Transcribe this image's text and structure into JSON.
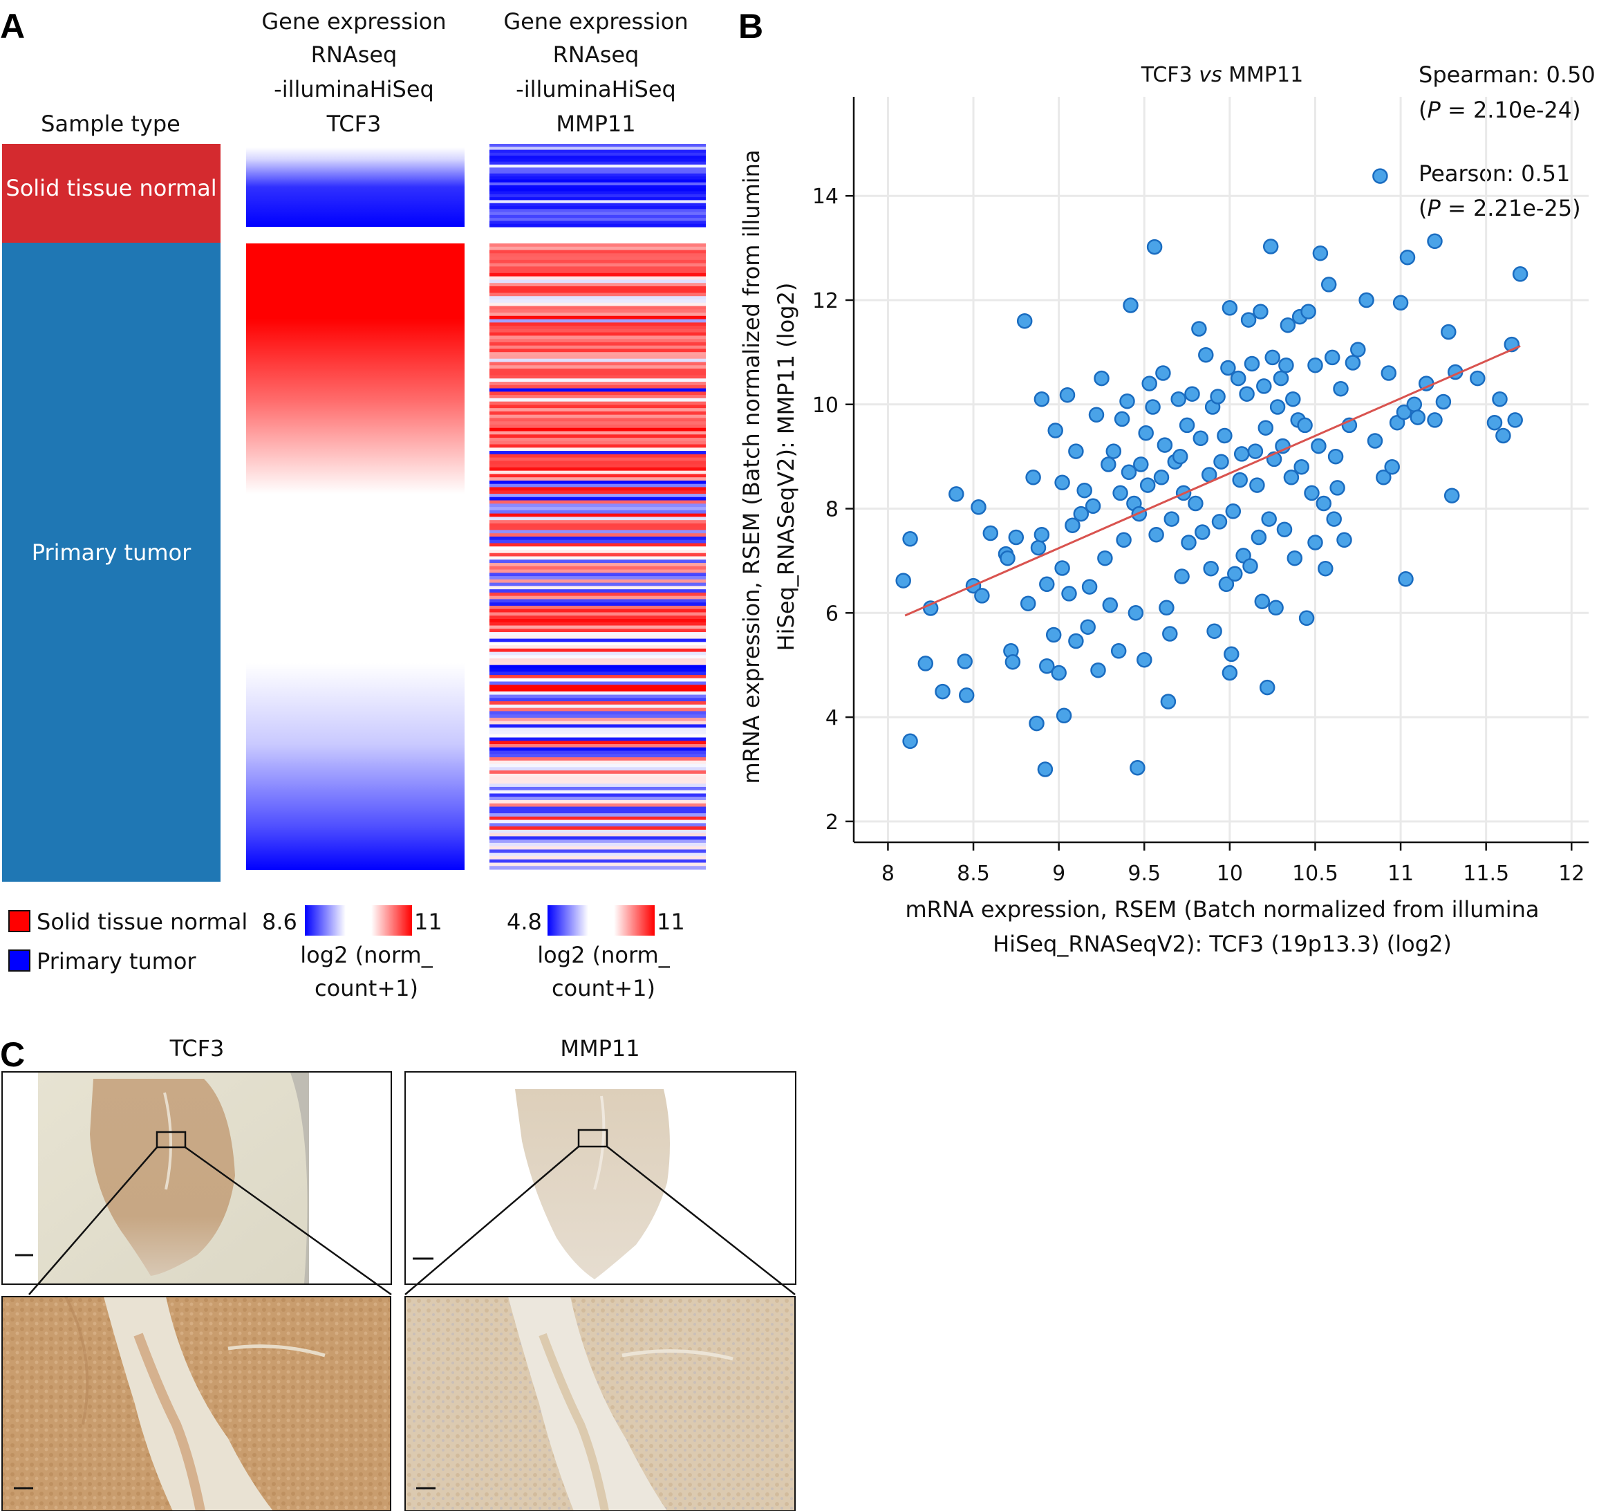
{
  "panel_labels": {
    "a": "A",
    "b": "B",
    "c": "C"
  },
  "panel_a": {
    "headers": {
      "sample_type": "Sample type",
      "tcf3": [
        "Gene expression",
        "RNAseq",
        "-illuminaHiSeq",
        "TCF3"
      ],
      "mmp11": [
        "Gene expression",
        "RNAseq",
        "-illuminaHiSeq",
        "MMP11"
      ]
    },
    "groups": [
      {
        "label": "Solid tissue normal",
        "color": "#d42a2f"
      },
      {
        "label": "Primary tumor",
        "color": "#1f77b4"
      }
    ],
    "legend": {
      "sample_items": [
        {
          "label": "Solid tissue normal",
          "color": "#ff0000"
        },
        {
          "label": "Primary tumor",
          "color": "#0000ff"
        }
      ],
      "tcf3_scale": {
        "min": "8.6",
        "max": "11",
        "unit_line1": "log2 (norm_",
        "unit_line2": "count+1)"
      },
      "mmp11_scale": {
        "min": "4.8",
        "max": "11",
        "unit_line1": "log2 (norm_",
        "unit_line2": "count+1)"
      }
    },
    "colors": {
      "low": "#0000ff",
      "mid": "#ffffff",
      "high": "#ff0000"
    }
  },
  "chart_data": {
    "type": "scatter",
    "title_left": "TCF3",
    "title_vs": "vs",
    "title_right": "MMP11",
    "xlabel": [
      "mRNA expression, RSEM (Batch normalized from illumina",
      "HiSeq_RNASeqV2): TCF3 (19p13.3) (log2)"
    ],
    "ylabel": [
      "mRNA expression, RSEM (Batch normalized from illumina",
      "HiSeq_RNASeqV2): MMP11 (log2)"
    ],
    "xlim": [
      7.8,
      12.1
    ],
    "ylim": [
      1.6,
      15.9
    ],
    "x_ticks": [
      8,
      8.5,
      9,
      9.5,
      10,
      10.5,
      11,
      11.5,
      12
    ],
    "x_tick_labels": [
      "8",
      "8.5",
      "9",
      "9.5",
      "10",
      "10.5",
      "11",
      "11.5",
      "12"
    ],
    "y_ticks": [
      2,
      4,
      6,
      8,
      10,
      12,
      14
    ],
    "y_tick_labels": [
      "2",
      "4",
      "6",
      "8",
      "10",
      "12",
      "14"
    ],
    "grid": true,
    "stats": {
      "spearman": "Spearman: 0.50",
      "spearman_p_label": "P",
      "spearman_p_rest": " = 2.10e-24)",
      "pearson": "Pearson: 0.51",
      "pearson_p_label": "P",
      "pearson_p_rest": " = 2.21e-25)"
    },
    "regression": {
      "x1": 8.1,
      "y1": 5.95,
      "x2": 11.7,
      "y2": 11.12
    },
    "point_color": "#4aa3e8",
    "point_edge": "#1a6cc0",
    "line_color": "#d9534f",
    "points": [
      [
        8.09,
        6.62
      ],
      [
        8.13,
        7.42
      ],
      [
        8.13,
        3.54
      ],
      [
        8.22,
        5.03
      ],
      [
        8.25,
        6.09
      ],
      [
        8.32,
        4.49
      ],
      [
        8.4,
        8.28
      ],
      [
        8.45,
        5.07
      ],
      [
        8.46,
        4.42
      ],
      [
        8.5,
        6.52
      ],
      [
        8.53,
        8.03
      ],
      [
        8.55,
        6.33
      ],
      [
        8.6,
        7.53
      ],
      [
        8.69,
        7.13
      ],
      [
        8.7,
        7.05
      ],
      [
        8.72,
        5.27
      ],
      [
        8.73,
        5.06
      ],
      [
        8.75,
        7.45
      ],
      [
        8.8,
        11.6
      ],
      [
        8.82,
        6.18
      ],
      [
        8.85,
        8.6
      ],
      [
        8.87,
        3.88
      ],
      [
        8.88,
        7.25
      ],
      [
        8.9,
        10.1
      ],
      [
        8.9,
        7.5
      ],
      [
        8.92,
        3.0
      ],
      [
        8.93,
        4.98
      ],
      [
        8.93,
        6.55
      ],
      [
        8.97,
        5.58
      ],
      [
        8.98,
        9.5
      ],
      [
        9.0,
        4.85
      ],
      [
        9.02,
        8.5
      ],
      [
        9.02,
        6.86
      ],
      [
        9.03,
        4.03
      ],
      [
        9.05,
        10.18
      ],
      [
        9.06,
        6.37
      ],
      [
        9.08,
        7.68
      ],
      [
        9.1,
        9.1
      ],
      [
        9.1,
        5.46
      ],
      [
        9.13,
        7.9
      ],
      [
        9.15,
        8.35
      ],
      [
        9.17,
        5.73
      ],
      [
        9.18,
        6.5
      ],
      [
        9.2,
        8.05
      ],
      [
        9.22,
        9.8
      ],
      [
        9.23,
        4.9
      ],
      [
        9.25,
        10.5
      ],
      [
        9.27,
        7.05
      ],
      [
        9.29,
        8.85
      ],
      [
        9.3,
        6.15
      ],
      [
        9.32,
        9.1
      ],
      [
        9.35,
        5.27
      ],
      [
        9.36,
        8.3
      ],
      [
        9.37,
        9.72
      ],
      [
        9.38,
        7.4
      ],
      [
        9.4,
        10.06
      ],
      [
        9.41,
        8.7
      ],
      [
        9.42,
        11.9
      ],
      [
        9.44,
        8.1
      ],
      [
        9.45,
        6.0
      ],
      [
        9.46,
        3.03
      ],
      [
        9.47,
        7.9
      ],
      [
        9.48,
        8.85
      ],
      [
        9.5,
        5.1
      ],
      [
        9.51,
        9.45
      ],
      [
        9.52,
        8.45
      ],
      [
        9.53,
        10.4
      ],
      [
        9.55,
        9.95
      ],
      [
        9.56,
        13.02
      ],
      [
        9.57,
        7.5
      ],
      [
        9.6,
        8.6
      ],
      [
        9.61,
        10.6
      ],
      [
        9.62,
        9.22
      ],
      [
        9.63,
        6.1
      ],
      [
        9.64,
        4.3
      ],
      [
        9.65,
        5.6
      ],
      [
        9.66,
        7.8
      ],
      [
        9.68,
        8.9
      ],
      [
        9.7,
        10.1
      ],
      [
        9.71,
        9.0
      ],
      [
        9.72,
        6.7
      ],
      [
        9.73,
        8.3
      ],
      [
        9.75,
        9.6
      ],
      [
        9.76,
        7.35
      ],
      [
        9.78,
        10.2
      ],
      [
        9.8,
        8.1
      ],
      [
        9.82,
        11.45
      ],
      [
        9.83,
        9.35
      ],
      [
        9.84,
        7.55
      ],
      [
        9.86,
        10.95
      ],
      [
        9.88,
        8.65
      ],
      [
        9.89,
        6.85
      ],
      [
        9.9,
        9.95
      ],
      [
        9.91,
        5.65
      ],
      [
        9.93,
        10.15
      ],
      [
        9.94,
        7.75
      ],
      [
        9.95,
        8.9
      ],
      [
        9.97,
        9.4
      ],
      [
        9.98,
        6.55
      ],
      [
        9.99,
        10.7
      ],
      [
        10.0,
        11.85
      ],
      [
        10.0,
        4.85
      ],
      [
        10.01,
        5.21
      ],
      [
        10.02,
        7.95
      ],
      [
        10.03,
        6.75
      ],
      [
        10.05,
        10.5
      ],
      [
        10.06,
        8.55
      ],
      [
        10.07,
        9.05
      ],
      [
        10.08,
        7.1
      ],
      [
        10.1,
        10.2
      ],
      [
        10.11,
        11.62
      ],
      [
        10.12,
        6.9
      ],
      [
        10.13,
        10.78
      ],
      [
        10.15,
        9.1
      ],
      [
        10.16,
        8.45
      ],
      [
        10.17,
        7.45
      ],
      [
        10.18,
        11.78
      ],
      [
        10.19,
        6.22
      ],
      [
        10.2,
        10.35
      ],
      [
        10.21,
        9.55
      ],
      [
        10.22,
        4.57
      ],
      [
        10.23,
        7.8
      ],
      [
        10.24,
        13.03
      ],
      [
        10.25,
        10.9
      ],
      [
        10.26,
        8.95
      ],
      [
        10.27,
        6.1
      ],
      [
        10.28,
        9.95
      ],
      [
        10.3,
        10.5
      ],
      [
        10.31,
        9.2
      ],
      [
        10.32,
        7.6
      ],
      [
        10.33,
        10.75
      ],
      [
        10.34,
        11.52
      ],
      [
        10.36,
        8.6
      ],
      [
        10.37,
        10.1
      ],
      [
        10.38,
        7.05
      ],
      [
        10.4,
        9.7
      ],
      [
        10.41,
        11.68
      ],
      [
        10.42,
        8.8
      ],
      [
        10.44,
        9.6
      ],
      [
        10.45,
        5.9
      ],
      [
        10.46,
        11.78
      ],
      [
        10.48,
        8.3
      ],
      [
        10.5,
        10.75
      ],
      [
        10.5,
        7.35
      ],
      [
        10.52,
        9.2
      ],
      [
        10.53,
        12.9
      ],
      [
        10.55,
        8.1
      ],
      [
        10.56,
        6.85
      ],
      [
        10.58,
        12.3
      ],
      [
        10.6,
        10.9
      ],
      [
        10.61,
        7.8
      ],
      [
        10.62,
        9.0
      ],
      [
        10.63,
        8.4
      ],
      [
        10.65,
        10.3
      ],
      [
        10.67,
        7.4
      ],
      [
        10.7,
        9.6
      ],
      [
        10.72,
        10.8
      ],
      [
        10.75,
        11.05
      ],
      [
        10.8,
        12.0
      ],
      [
        10.85,
        9.3
      ],
      [
        10.88,
        14.38
      ],
      [
        10.9,
        8.6
      ],
      [
        10.93,
        10.6
      ],
      [
        10.95,
        8.8
      ],
      [
        10.98,
        9.65
      ],
      [
        11.0,
        11.95
      ],
      [
        11.02,
        9.85
      ],
      [
        11.03,
        6.65
      ],
      [
        11.04,
        12.82
      ],
      [
        11.08,
        10.0
      ],
      [
        11.1,
        9.75
      ],
      [
        11.15,
        10.4
      ],
      [
        11.2,
        13.13
      ],
      [
        11.2,
        9.7
      ],
      [
        11.25,
        10.05
      ],
      [
        11.28,
        11.39
      ],
      [
        11.3,
        8.25
      ],
      [
        11.32,
        10.62
      ],
      [
        11.45,
        10.5
      ],
      [
        11.55,
        9.65
      ],
      [
        11.58,
        10.1
      ],
      [
        11.6,
        9.4
      ],
      [
        11.65,
        11.15
      ],
      [
        11.67,
        9.7
      ],
      [
        11.7,
        12.5
      ]
    ]
  },
  "panel_c": {
    "titles": {
      "tcf3": "TCF3",
      "mmp11": "MMP11"
    }
  }
}
